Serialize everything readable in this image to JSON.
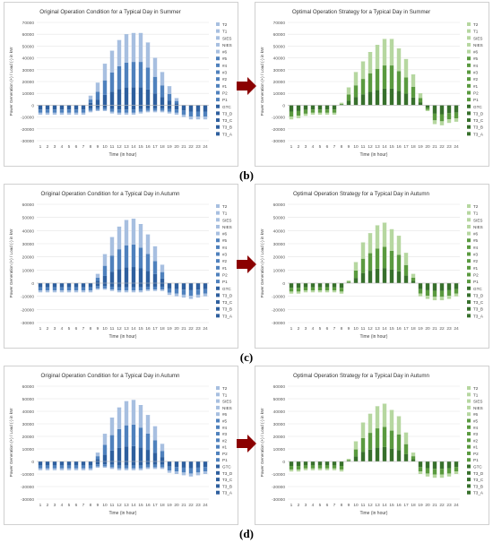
{
  "hours": [
    "1",
    "2",
    "3",
    "4",
    "5",
    "6",
    "7",
    "8",
    "9",
    "10",
    "11",
    "12",
    "13",
    "14",
    "15",
    "16",
    "17",
    "18",
    "19",
    "20",
    "21",
    "22",
    "23",
    "24"
  ],
  "legend_items": [
    "T2",
    "T1",
    "SIES",
    "NIES",
    "#6",
    "#5",
    "#4",
    "#3",
    "#2",
    "#1",
    "P2",
    "P1",
    "GTC",
    "T3_D",
    "T3_C",
    "T3_B",
    "T3_A"
  ],
  "colors": {
    "blue_dark": "#2e5f9e",
    "blue_mid": "#4f81bd",
    "blue_light": "#a7bfe0",
    "green_dark": "#37702c",
    "green_mid": "#5a9a3f",
    "green_light": "#b6d7a0",
    "arrow": "#8b0000",
    "grid": "#e4e4e4",
    "axis_text": "#555555"
  },
  "captions": {
    "b": "(b)",
    "c": "(c)",
    "d": "(d)"
  },
  "chart_data": [
    {
      "type": "bar",
      "stacked": true,
      "title": "Original Operation Condition for a Typical Day in Summer",
      "xlabel": "Time (in hour)",
      "ylabel": "Power Generation (+) / Load (-) in kW",
      "ylim": [
        -30000,
        70000
      ],
      "yticks": [
        -30000,
        -20000,
        -10000,
        0,
        10000,
        20000,
        30000,
        40000,
        50000,
        60000,
        70000
      ],
      "palette": "blue",
      "x": [
        1,
        2,
        3,
        4,
        5,
        6,
        7,
        8,
        9,
        10,
        11,
        12,
        13,
        14,
        15,
        16,
        17,
        18,
        19,
        20,
        21,
        22,
        23,
        24
      ],
      "positive": [
        0,
        0,
        0,
        0,
        0,
        0,
        0,
        8000,
        19000,
        35000,
        46000,
        55000,
        60000,
        61000,
        61000,
        53000,
        40000,
        28000,
        16000,
        6000,
        0,
        0,
        0,
        0
      ],
      "negative": [
        -8000,
        -8000,
        -8000,
        -8000,
        -8000,
        -8000,
        -8000,
        -6000,
        -5000,
        -5000,
        -7000,
        -8000,
        -8000,
        -8000,
        -7000,
        -6000,
        -6000,
        -6000,
        -7000,
        -8000,
        -10000,
        -12000,
        -12000,
        -12000
      ]
    },
    {
      "type": "bar",
      "stacked": true,
      "title": "Optimal Operation Strategy for a Typical Day in Summer",
      "xlabel": "Time (in hour)",
      "ylabel": "Power Generation (+) / Load (-) in kW",
      "ylim": [
        -30000,
        70000
      ],
      "yticks": [
        -30000,
        -20000,
        -10000,
        0,
        10000,
        20000,
        30000,
        40000,
        50000,
        60000,
        70000
      ],
      "palette": "green",
      "x": [
        1,
        2,
        3,
        4,
        5,
        6,
        7,
        8,
        9,
        10,
        11,
        12,
        13,
        14,
        15,
        16,
        17,
        18,
        19,
        20,
        21,
        22,
        23,
        24
      ],
      "positive": [
        0,
        0,
        0,
        0,
        0,
        0,
        0,
        2000,
        15000,
        28000,
        37000,
        45000,
        51000,
        56000,
        56000,
        48000,
        39000,
        26000,
        10000,
        0,
        0,
        0,
        0,
        0
      ],
      "negative": [
        -12000,
        -11000,
        -9000,
        -8000,
        -8000,
        -8000,
        -8000,
        0,
        0,
        0,
        0,
        0,
        0,
        0,
        0,
        0,
        0,
        0,
        0,
        -5000,
        -16000,
        -17000,
        -15000,
        -14000
      ]
    },
    {
      "type": "bar",
      "stacked": true,
      "title": "Original Operation Condition for a Typical Day in Autumn",
      "xlabel": "Time (in hour)",
      "ylabel": "Power Generation (+) / Load (-) in kW",
      "ylim": [
        -30000,
        60000
      ],
      "yticks": [
        -30000,
        -20000,
        -10000,
        0,
        10000,
        20000,
        30000,
        40000,
        50000,
        60000
      ],
      "palette": "blue",
      "x": [
        1,
        2,
        3,
        4,
        5,
        6,
        7,
        8,
        9,
        10,
        11,
        12,
        13,
        14,
        15,
        16,
        17,
        18,
        19,
        20,
        21,
        22,
        23,
        24
      ],
      "positive": [
        0,
        0,
        0,
        0,
        0,
        0,
        0,
        0,
        7000,
        22000,
        35000,
        43000,
        48000,
        49000,
        45000,
        37000,
        28000,
        14000,
        0,
        0,
        0,
        0,
        0,
        0
      ],
      "negative": [
        -7000,
        -7000,
        -7000,
        -7000,
        -7000,
        -7000,
        -7000,
        -7000,
        -5000,
        -5000,
        -6000,
        -7000,
        -7000,
        -7000,
        -7000,
        -6000,
        -6000,
        -6000,
        -9000,
        -10000,
        -11000,
        -12000,
        -11000,
        -10000
      ]
    },
    {
      "type": "bar",
      "stacked": true,
      "title": "Optimal Operation Strategy for a Typical Day in Autumn",
      "xlabel": "Time (in hour)",
      "ylabel": "Power Generation (+) / Load (-) in kW",
      "ylim": [
        -30000,
        60000
      ],
      "yticks": [
        -30000,
        -20000,
        -10000,
        0,
        10000,
        20000,
        30000,
        40000,
        50000,
        60000
      ],
      "palette": "green",
      "x": [
        1,
        2,
        3,
        4,
        5,
        6,
        7,
        8,
        9,
        10,
        11,
        12,
        13,
        14,
        15,
        16,
        17,
        18,
        19,
        20,
        21,
        22,
        23,
        24
      ],
      "positive": [
        0,
        0,
        0,
        0,
        0,
        0,
        0,
        0,
        2000,
        16000,
        31000,
        38000,
        44000,
        46000,
        41000,
        36000,
        23000,
        7000,
        0,
        0,
        0,
        0,
        0,
        0
      ],
      "negative": [
        -8000,
        -8000,
        -7000,
        -7000,
        -7000,
        -7000,
        -7000,
        -8000,
        0,
        0,
        0,
        0,
        0,
        0,
        0,
        0,
        0,
        0,
        -10000,
        -12000,
        -13000,
        -13000,
        -12000,
        -10000
      ]
    },
    {
      "type": "bar",
      "stacked": true,
      "title": "Original Operation Condition for a Typical Day in Autumn",
      "xlabel": "Time (in hour)",
      "ylabel": "Power Generation (+) / Load (-) in kW",
      "ylim": [
        -30000,
        60000
      ],
      "yticks": [
        -30000,
        -20000,
        -10000,
        0,
        10000,
        20000,
        30000,
        40000,
        50000,
        60000
      ],
      "palette": "blue",
      "x": [
        1,
        2,
        3,
        4,
        5,
        6,
        7,
        8,
        9,
        10,
        11,
        12,
        13,
        14,
        15,
        16,
        17,
        18,
        19,
        20,
        21,
        22,
        23,
        24
      ],
      "positive": [
        0,
        0,
        0,
        0,
        0,
        0,
        0,
        0,
        7000,
        22000,
        35000,
        43000,
        48000,
        49000,
        45000,
        37000,
        28000,
        14000,
        0,
        0,
        0,
        0,
        0,
        0
      ],
      "negative": [
        -7000,
        -7000,
        -7000,
        -7000,
        -7000,
        -7000,
        -7000,
        -7000,
        -5000,
        -5000,
        -6000,
        -7000,
        -7000,
        -7000,
        -7000,
        -6000,
        -6000,
        -6000,
        -9000,
        -10000,
        -11000,
        -12000,
        -11000,
        -10000
      ]
    },
    {
      "type": "bar",
      "stacked": true,
      "title": "Optimal Operation Strategy for a Typical Day in Autumn",
      "xlabel": "Time (in hour)",
      "ylabel": "Power Generation (+) / Load (-) in kW",
      "ylim": [
        -30000,
        60000
      ],
      "yticks": [
        -30000,
        -20000,
        -10000,
        0,
        10000,
        20000,
        30000,
        40000,
        50000,
        60000
      ],
      "palette": "green",
      "x": [
        1,
        2,
        3,
        4,
        5,
        6,
        7,
        8,
        9,
        10,
        11,
        12,
        13,
        14,
        15,
        16,
        17,
        18,
        19,
        20,
        21,
        22,
        23,
        24
      ],
      "positive": [
        0,
        0,
        0,
        0,
        0,
        0,
        0,
        0,
        2000,
        16000,
        31000,
        38000,
        44000,
        46000,
        41000,
        36000,
        23000,
        7000,
        0,
        0,
        0,
        0,
        0,
        0
      ],
      "negative": [
        -8000,
        -8000,
        -7000,
        -7000,
        -7000,
        -7000,
        -7000,
        -8000,
        0,
        0,
        0,
        0,
        0,
        0,
        0,
        0,
        0,
        0,
        -10000,
        -12000,
        -13000,
        -13000,
        -12000,
        -10000
      ]
    }
  ]
}
